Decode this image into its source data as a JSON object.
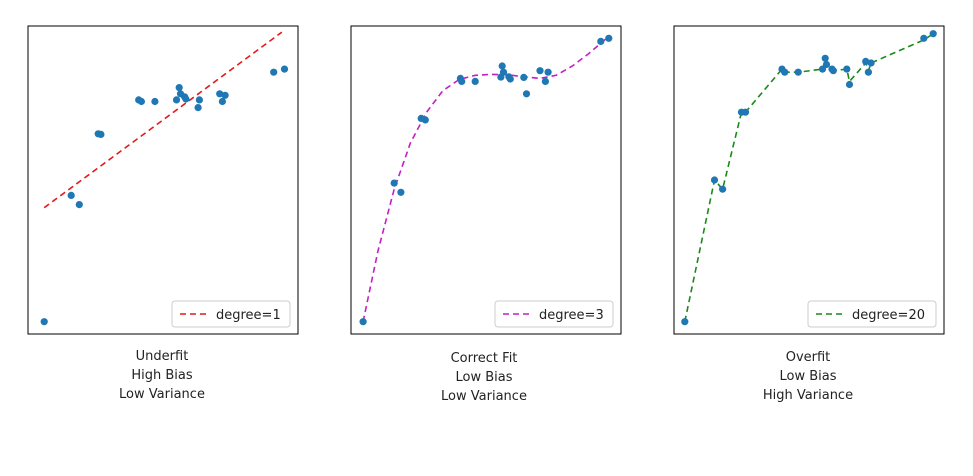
{
  "colors": {
    "points": "#1f77b4",
    "degree_1": "#e31a1c",
    "degree_3": "#c41ec4",
    "degree_20": "#1a8a1a",
    "frame": "#000000",
    "legend_border": "#cccccc"
  },
  "chart_data": [
    {
      "type": "scatter",
      "title": "",
      "xlim": [
        0,
        1
      ],
      "ylim": [
        0,
        1
      ],
      "grid": false,
      "legend_placement": "lower-right",
      "legend": [
        "degree=1"
      ],
      "caption": [
        "Underfit",
        "High Bias",
        "Low Variance"
      ],
      "points": [
        [
          0.06,
          0.04
        ],
        [
          0.16,
          0.45
        ],
        [
          0.19,
          0.42
        ],
        [
          0.26,
          0.65
        ],
        [
          0.27,
          0.648
        ],
        [
          0.41,
          0.76
        ],
        [
          0.42,
          0.755
        ],
        [
          0.47,
          0.755
        ],
        [
          0.55,
          0.76
        ],
        [
          0.56,
          0.8
        ],
        [
          0.565,
          0.78
        ],
        [
          0.58,
          0.77
        ],
        [
          0.585,
          0.763
        ],
        [
          0.63,
          0.735
        ],
        [
          0.635,
          0.76
        ],
        [
          0.71,
          0.78
        ],
        [
          0.72,
          0.755
        ],
        [
          0.73,
          0.775
        ],
        [
          0.91,
          0.85
        ],
        [
          0.95,
          0.86
        ]
      ],
      "fit_line": [
        [
          0.06,
          0.41
        ],
        [
          0.94,
          0.98
        ]
      ]
    },
    {
      "type": "scatter",
      "title": "",
      "xlim": [
        0,
        1
      ],
      "ylim": [
        0,
        1
      ],
      "grid": false,
      "legend_placement": "lower-right",
      "legend": [
        "degree=3"
      ],
      "caption": [
        "Correct Fit",
        "Low Bias",
        "Low Variance"
      ],
      "points": [
        [
          0.045,
          0.04
        ],
        [
          0.16,
          0.49
        ],
        [
          0.185,
          0.46
        ],
        [
          0.26,
          0.7
        ],
        [
          0.275,
          0.695
        ],
        [
          0.405,
          0.83
        ],
        [
          0.41,
          0.82
        ],
        [
          0.46,
          0.82
        ],
        [
          0.555,
          0.834
        ],
        [
          0.56,
          0.87
        ],
        [
          0.565,
          0.85
        ],
        [
          0.585,
          0.835
        ],
        [
          0.59,
          0.828
        ],
        [
          0.64,
          0.833
        ],
        [
          0.65,
          0.78
        ],
        [
          0.7,
          0.855
        ],
        [
          0.72,
          0.82
        ],
        [
          0.73,
          0.85
        ],
        [
          0.925,
          0.95
        ],
        [
          0.955,
          0.96
        ]
      ],
      "fit_line": [
        [
          0.045,
          0.04
        ],
        [
          0.1,
          0.27
        ],
        [
          0.16,
          0.47
        ],
        [
          0.22,
          0.62
        ],
        [
          0.28,
          0.72
        ],
        [
          0.34,
          0.79
        ],
        [
          0.4,
          0.826
        ],
        [
          0.46,
          0.84
        ],
        [
          0.52,
          0.843
        ],
        [
          0.58,
          0.842
        ],
        [
          0.64,
          0.835
        ],
        [
          0.7,
          0.83
        ],
        [
          0.76,
          0.84
        ],
        [
          0.82,
          0.87
        ],
        [
          0.88,
          0.91
        ],
        [
          0.96,
          0.97
        ]
      ]
    },
    {
      "type": "scatter",
      "title": "",
      "xlim": [
        0,
        1
      ],
      "ylim": [
        0,
        1
      ],
      "grid": false,
      "legend_placement": "lower-right",
      "legend": [
        "degree=20"
      ],
      "caption": [
        "Overfit",
        "Low Bias",
        "High Variance"
      ],
      "points": [
        [
          0.04,
          0.04
        ],
        [
          0.15,
          0.5
        ],
        [
          0.18,
          0.47
        ],
        [
          0.25,
          0.72
        ],
        [
          0.265,
          0.72
        ],
        [
          0.4,
          0.86
        ],
        [
          0.41,
          0.85
        ],
        [
          0.46,
          0.85
        ],
        [
          0.55,
          0.86
        ],
        [
          0.56,
          0.895
        ],
        [
          0.565,
          0.875
        ],
        [
          0.585,
          0.86
        ],
        [
          0.59,
          0.855
        ],
        [
          0.64,
          0.86
        ],
        [
          0.65,
          0.81
        ],
        [
          0.71,
          0.885
        ],
        [
          0.72,
          0.85
        ],
        [
          0.73,
          0.88
        ],
        [
          0.925,
          0.96
        ],
        [
          0.96,
          0.975
        ]
      ],
      "fit_line": [
        [
          0.04,
          0.04
        ],
        [
          0.15,
          0.5
        ],
        [
          0.18,
          0.47
        ],
        [
          0.25,
          0.72
        ],
        [
          0.265,
          0.72
        ],
        [
          0.4,
          0.86
        ],
        [
          0.41,
          0.85
        ],
        [
          0.46,
          0.85
        ],
        [
          0.55,
          0.86
        ],
        [
          0.56,
          0.89
        ],
        [
          0.565,
          0.875
        ],
        [
          0.585,
          0.86
        ],
        [
          0.59,
          0.855
        ],
        [
          0.64,
          0.86
        ],
        [
          0.65,
          0.82
        ],
        [
          0.71,
          0.88
        ],
        [
          0.72,
          0.855
        ],
        [
          0.73,
          0.88
        ],
        [
          0.925,
          0.955
        ],
        [
          0.96,
          0.975
        ]
      ]
    }
  ]
}
